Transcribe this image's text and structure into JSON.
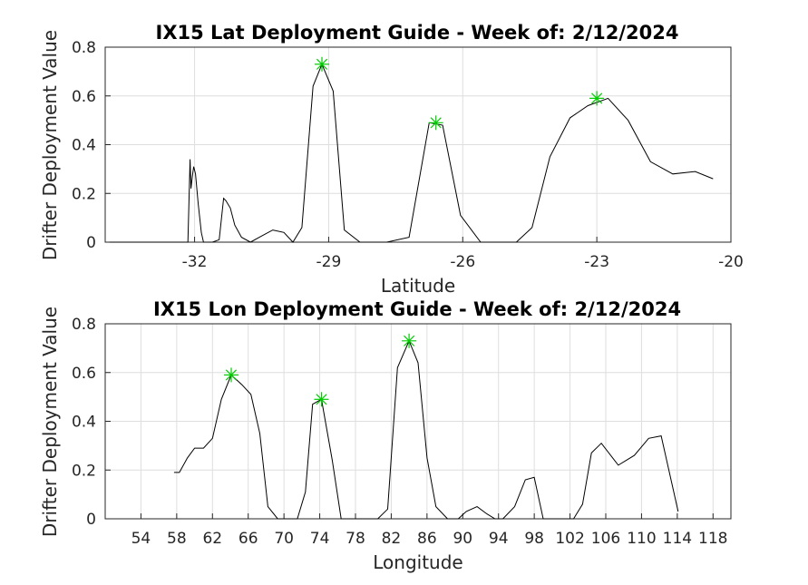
{
  "chart_data": [
    {
      "type": "line",
      "title": "IX15 Lat Deployment Guide - Week of: 2/12/2024",
      "xlabel": "Latitude",
      "ylabel": "Drifter Deployment Value",
      "xlim": [
        -34,
        -20
      ],
      "ylim": [
        0,
        0.8
      ],
      "xticks": [
        -32,
        -29,
        -26,
        -23,
        -20
      ],
      "yticks": [
        0,
        0.2,
        0.4,
        0.6,
        0.8
      ],
      "xtick_labels": [
        "-32",
        "-29",
        "-26",
        "-23",
        "-20"
      ],
      "ytick_labels": [
        "0",
        "0.2",
        "0.4",
        "0.6",
        "0.8"
      ],
      "grid": true,
      "series": [
        {
          "x": [
            -33.9,
            -32.15,
            -32.1,
            -32.08,
            -32.05,
            -32.02,
            -31.98,
            -31.92,
            -31.85,
            -31.8,
            -31.6,
            -31.45,
            -31.35,
            -31.3,
            -31.2,
            -31.1,
            -30.95,
            -30.75,
            -30.55,
            -30.25,
            -30.0,
            -29.8,
            -29.6,
            -29.35,
            -29.15,
            -28.9,
            -28.65,
            -28.3,
            -28.1,
            -27.7,
            -27.2,
            -26.75,
            -26.45,
            -26.05,
            -25.6,
            -24.8,
            -24.45,
            -24.05,
            -23.6,
            -23.2,
            -22.75,
            -22.3,
            -21.8,
            -21.3,
            -20.8,
            -20.4
          ],
          "y": [
            0,
            0,
            0.34,
            0.22,
            0.27,
            0.31,
            0.28,
            0.16,
            0.04,
            0,
            0,
            0.01,
            0.18,
            0.17,
            0.14,
            0.07,
            0.02,
            0,
            0.02,
            0.05,
            0.04,
            0,
            0.06,
            0.64,
            0.73,
            0.62,
            0.05,
            0,
            0,
            0,
            0.02,
            0.49,
            0.48,
            0.11,
            0,
            0,
            0.06,
            0.35,
            0.51,
            0.56,
            0.59,
            0.5,
            0.33,
            0.28,
            0.29,
            0.26
          ]
        }
      ],
      "peaks": [
        {
          "x": -29.15,
          "y": 0.73
        },
        {
          "x": -26.6,
          "y": 0.49
        },
        {
          "x": -23.0,
          "y": 0.59
        }
      ]
    },
    {
      "type": "line",
      "title": "IX15 Lon Deployment Guide - Week of: 2/12/2024",
      "xlabel": "Longitude",
      "ylabel": "Drifter Deployment Value",
      "xlim": [
        50,
        120
      ],
      "ylim": [
        0,
        0.8
      ],
      "xticks": [
        54,
        58,
        62,
        66,
        70,
        74,
        78,
        82,
        86,
        90,
        94,
        98,
        102,
        106,
        110,
        114,
        118
      ],
      "yticks": [
        0,
        0.2,
        0.4,
        0.6,
        0.8
      ],
      "xtick_labels": [
        "54",
        "58",
        "62",
        "66",
        "70",
        "74",
        "78",
        "82",
        "86",
        "90",
        "94",
        "98",
        "102",
        "106",
        "110",
        "114",
        "118"
      ],
      "ytick_labels": [
        "0",
        "0.2",
        "0.4",
        "0.6",
        "0.8"
      ],
      "grid": true,
      "series": [
        {
          "x": [
            57.7,
            58.3,
            59.2,
            60.0,
            61.0,
            62.0,
            63.0,
            64.1,
            65.3,
            66.3,
            67.3,
            68.2,
            69.3,
            70.6,
            71.5,
            72.4,
            73.2,
            74.2,
            75.4,
            76.4,
            77.4,
            78.3,
            79.2,
            80.5,
            81.6,
            82.7,
            84.0,
            85.0,
            86.0,
            87.0,
            88.3,
            89.5,
            90.4,
            91.6,
            92.7,
            93.6,
            94.5,
            95.8,
            97.0,
            98.0,
            99.0,
            100.0,
            101.2,
            102.4,
            103.4,
            104.4,
            105.5,
            107.4,
            109.2,
            110.8,
            112.2,
            114.1
          ],
          "y": [
            0.19,
            0.19,
            0.25,
            0.29,
            0.29,
            0.33,
            0.49,
            0.59,
            0.55,
            0.51,
            0.35,
            0.05,
            0,
            0,
            0,
            0.11,
            0.47,
            0.49,
            0.24,
            0,
            0,
            0,
            0,
            0,
            0.04,
            0.62,
            0.73,
            0.64,
            0.25,
            0.05,
            0,
            0,
            0.03,
            0.05,
            0.02,
            0,
            0,
            0.05,
            0.16,
            0.17,
            0,
            0,
            0,
            0,
            0.06,
            0.27,
            0.31,
            0.22,
            0.26,
            0.33,
            0.34,
            0.03
          ]
        }
      ],
      "peaks": [
        {
          "x": 64.1,
          "y": 0.59
        },
        {
          "x": 74.2,
          "y": 0.49
        },
        {
          "x": 84.0,
          "y": 0.73
        }
      ]
    }
  ],
  "styles": {
    "line_color": "#000000",
    "peak_marker_color": "#00cc00",
    "grid_color": "#dedede",
    "axis_color": "#262626",
    "peak_marker": "asterisk"
  }
}
